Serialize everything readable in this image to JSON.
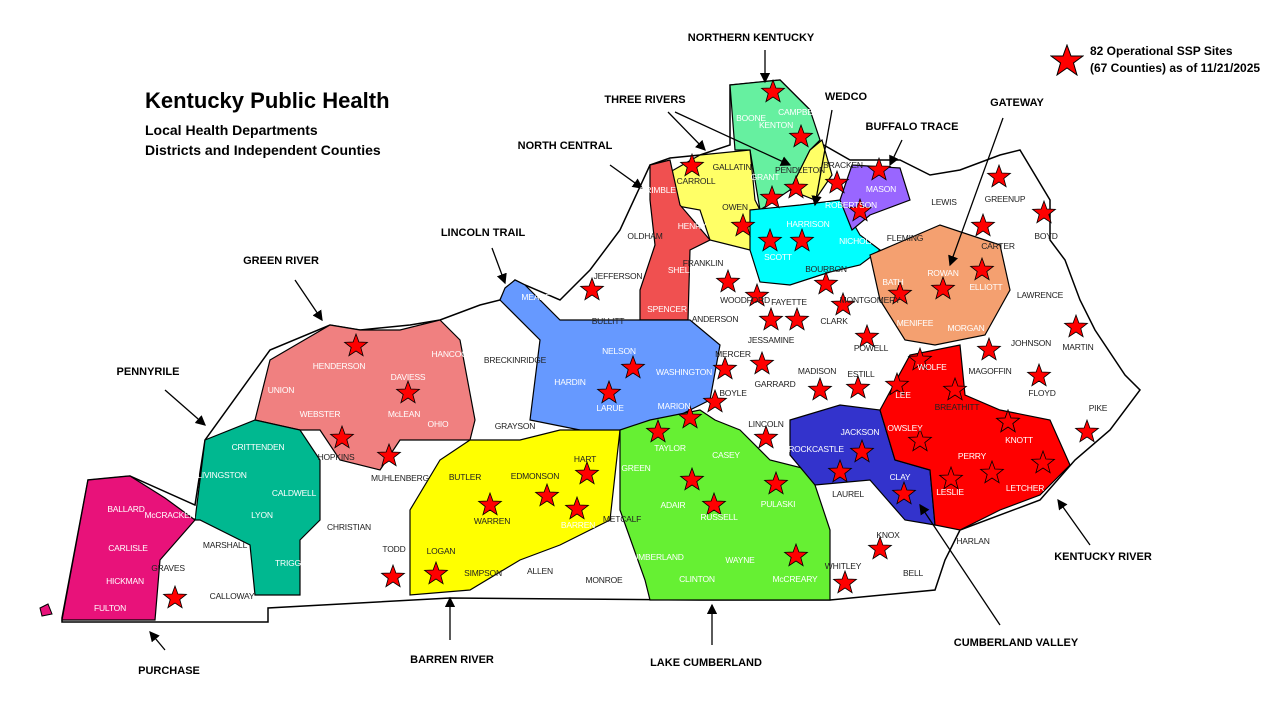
{
  "title": {
    "main": "Kentucky Public Health",
    "line1": "Local Health Departments",
    "line2": "Districts and Independent Counties"
  },
  "legend": {
    "icon": "red-star-icon",
    "line1": "82 Operational SSP Sites",
    "line2": "(67 Counties) as of 11/21/2025",
    "star_color": "#ff0000"
  },
  "districts": [
    {
      "name": "NORTHERN KENTUCKY",
      "color": "#66f0a0"
    },
    {
      "name": "THREE RIVERS",
      "color": "#ffff66"
    },
    {
      "name": "WEDCO",
      "color": "#00ffff"
    },
    {
      "name": "GATEWAY",
      "color": "#f4a070"
    },
    {
      "name": "BUFFALO TRACE",
      "color": "#9966ff"
    },
    {
      "name": "NORTH CENTRAL",
      "color": "#f05050"
    },
    {
      "name": "LINCOLN TRAIL",
      "color": "#6699ff"
    },
    {
      "name": "GREEN RIVER",
      "color": "#f08080"
    },
    {
      "name": "PENNYRILE",
      "color": "#00b890"
    },
    {
      "name": "PURCHASE",
      "color": "#e8127a"
    },
    {
      "name": "BARREN RIVER",
      "color": "#ffff00"
    },
    {
      "name": "LAKE CUMBERLAND",
      "color": "#66f033"
    },
    {
      "name": "CUMBERLAND VALLEY",
      "color": "#3333cc"
    },
    {
      "name": "KENTUCKY RIVER",
      "color": "#ff0000"
    }
  ],
  "counties": [
    "BOONE",
    "KENTON",
    "CAMPBELL",
    "GALLATIN",
    "CARROLL",
    "GRANT",
    "PENDLETON",
    "BRACKEN",
    "MASON",
    "ROBERTSON",
    "HARRISON",
    "NICHOLAS",
    "SCOTT",
    "OWEN",
    "TRIMBLE",
    "HENRY",
    "SHELBY",
    "SPENCER",
    "OLDHAM",
    "JEFFERSON",
    "BULLITT",
    "FRANKLIN",
    "WOODFORD",
    "FAYETTE",
    "JESSAMINE",
    "ANDERSON",
    "MERCER",
    "BOYLE",
    "GARRARD",
    "MADISON",
    "ESTILL",
    "CLARK",
    "BOURBON",
    "MONTGOMERY",
    "POWELL",
    "BATH",
    "ROWAN",
    "ELLIOTT",
    "MENIFEE",
    "MORGAN",
    "FLEMING",
    "LEWIS",
    "GREENUP",
    "CARTER",
    "BOYD",
    "LAWRENCE",
    "JOHNSON",
    "MARTIN",
    "MAGOFFIN",
    "FLOYD",
    "PIKE",
    "WOLFE",
    "LEE",
    "BREATHITT",
    "OWSLEY",
    "KNOTT",
    "PERRY",
    "LESLIE",
    "LETCHER",
    "JACKSON",
    "ROCKCASTLE",
    "CLAY",
    "LAUREL",
    "KNOX",
    "BELL",
    "WHITLEY",
    "HARLAN",
    "LINCOLN",
    "PULASKI",
    "CASEY",
    "TAYLOR",
    "GREEN",
    "ADAIR",
    "RUSSELL",
    "WAYNE",
    "McCREARY",
    "CLINTON",
    "CUMBERLAND",
    "METCALF",
    "BARREN",
    "HART",
    "EDMONSON",
    "WARREN",
    "BUTLER",
    "LOGAN",
    "SIMPSON",
    "ALLEN",
    "MONROE",
    "TODD",
    "CHRISTIAN",
    "MUHLENBERG",
    "HOPKINS",
    "GRAYSON",
    "BRECKINRIDGE",
    "MEADE",
    "HARDIN",
    "LARUE",
    "NELSON",
    "WASHINGTON",
    "MARION",
    "HENDERSON",
    "DAVIESS",
    "HANCOCK",
    "McLEAN",
    "OHIO",
    "UNION",
    "WEBSTER",
    "CRITTENDEN",
    "LIVINGSTON",
    "CALDWELL",
    "LYON",
    "TRIGG",
    "MARSHALL",
    "CALLOWAY",
    "GRAVES",
    "BALLARD",
    "McCRACKEN",
    "CARLISLE",
    "HICKMAN",
    "FULTON"
  ]
}
